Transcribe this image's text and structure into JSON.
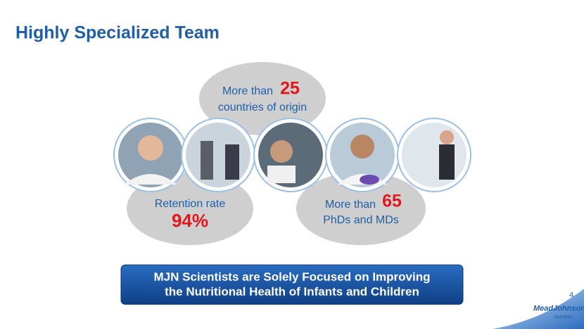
{
  "header": {
    "title": "Highly Specialized Team"
  },
  "stats": [
    {
      "prefix": "More than",
      "number": "25",
      "suffix": "countries of origin"
    },
    {
      "label": "Retention rate",
      "number": "94%"
    },
    {
      "prefix": "More than",
      "number": "65",
      "suffix": "PhDs and MDs"
    }
  ],
  "banner": {
    "lines": [
      "MJN Scientists are Solely Focused on Improving",
      "the Nutritional Health of Infants and Children"
    ]
  },
  "page_number": "4",
  "logo": {
    "name": "MeadJohnson",
    "tagline": "Nutrition"
  }
}
